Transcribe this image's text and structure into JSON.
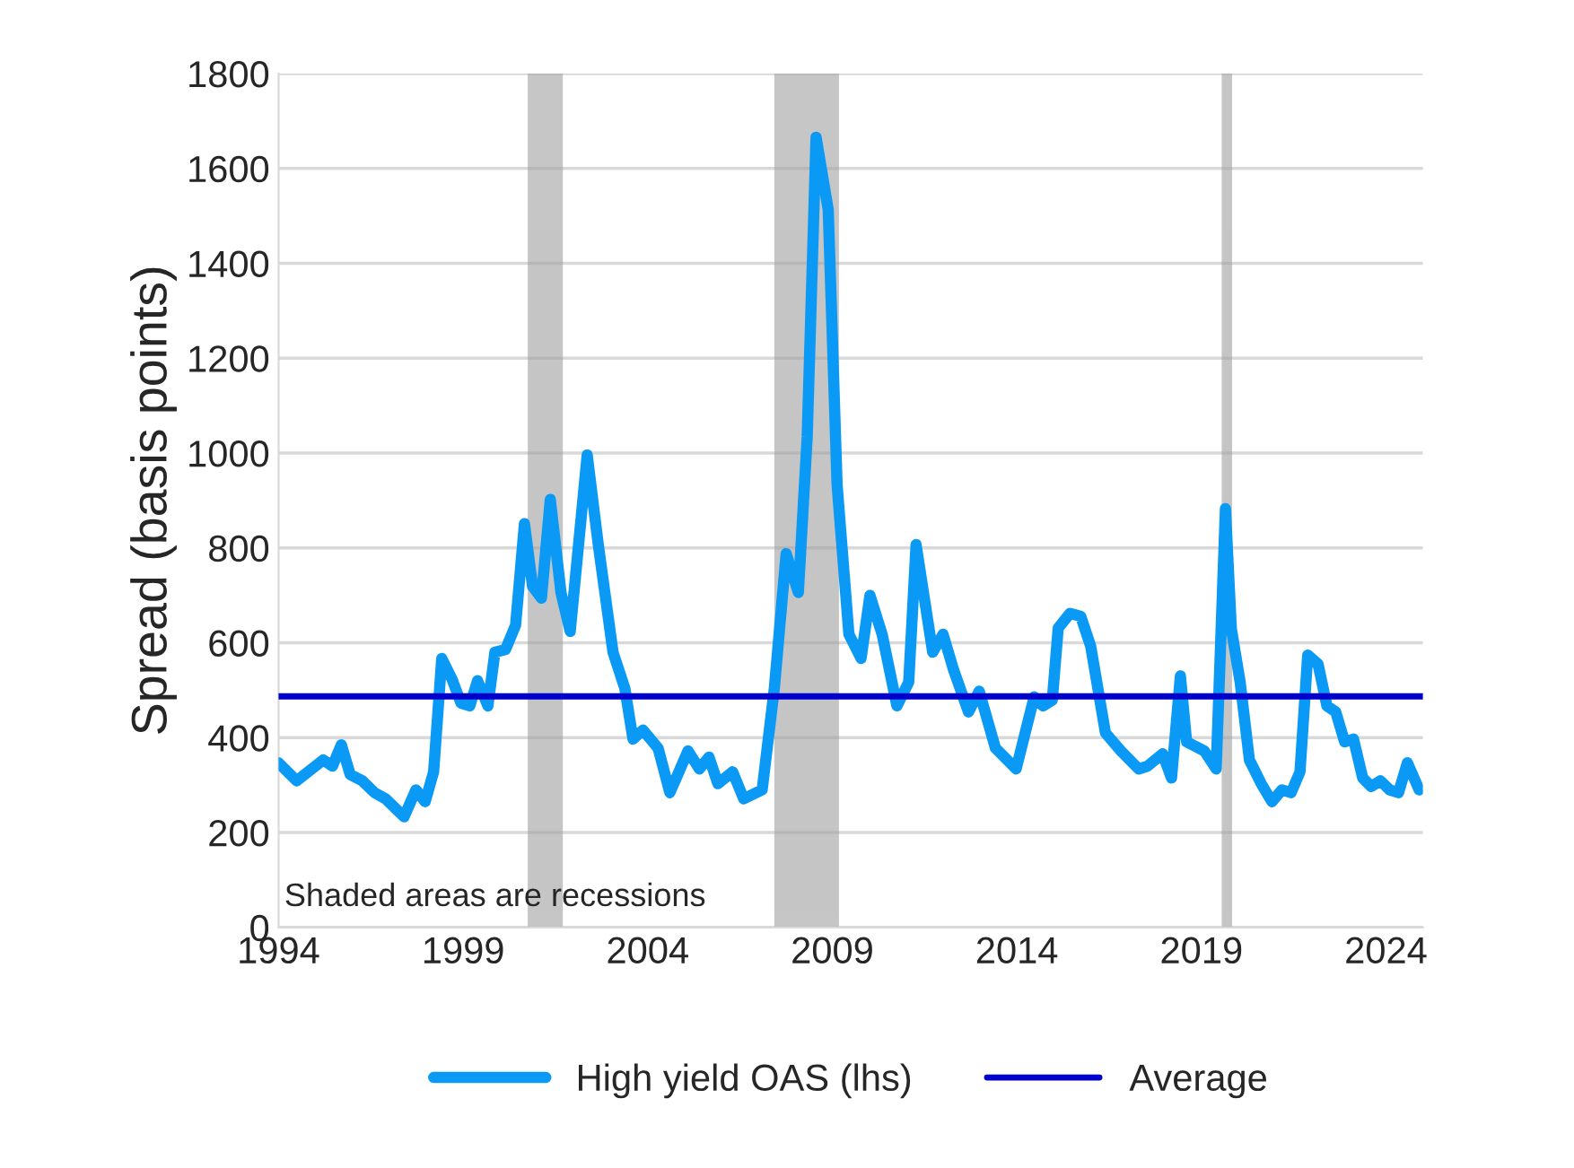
{
  "chart_data": {
    "type": "line",
    "ylabel": "Spread (basis points)",
    "xlim": [
      1994,
      2025
    ],
    "xticks": [
      1994,
      1999,
      2004,
      2009,
      2014,
      2019,
      2024
    ],
    "ylim": [
      0,
      1800
    ],
    "yticks": [
      0,
      200,
      400,
      600,
      800,
      1000,
      1200,
      1400,
      1600,
      1800
    ],
    "grid": "y",
    "legend": "bottom",
    "series": [
      {
        "name": "High yield OAS (lhs)",
        "color": "#0a9af5",
        "x": [
          1994.0,
          1994.49,
          1995.21,
          1995.46,
          1995.7,
          1995.94,
          1996.27,
          1996.6,
          1996.9,
          1997.4,
          1997.72,
          1997.97,
          1998.2,
          1998.42,
          1998.7,
          1998.94,
          1999.18,
          1999.39,
          1999.67,
          1999.86,
          2000.15,
          2000.42,
          2000.66,
          2000.88,
          2001.12,
          2001.36,
          2001.65,
          2001.9,
          2002.36,
          2002.66,
          2003.06,
          2003.38,
          2003.6,
          2003.87,
          2004.28,
          2004.6,
          2005.09,
          2005.4,
          2005.66,
          2005.9,
          2006.3,
          2006.6,
          2007.1,
          2007.43,
          2007.75,
          2008.08,
          2008.32,
          2008.56,
          2008.89,
          2009.13,
          2009.45,
          2009.78,
          2010.02,
          2010.35,
          2010.75,
          2011.07,
          2011.27,
          2011.72,
          2012.0,
          2012.29,
          2012.69,
          2012.98,
          2013.42,
          2013.98,
          2014.47,
          2014.71,
          2014.96,
          2015.12,
          2015.44,
          2015.73,
          2016.0,
          2016.4,
          2016.82,
          2017.3,
          2017.54,
          2017.95,
          2018.19,
          2018.43,
          2018.6,
          2019.08,
          2019.4,
          2019.65,
          2019.81,
          2020.05,
          2020.3,
          2020.62,
          2020.91,
          2021.18,
          2021.43,
          2021.67,
          2021.88,
          2022.16,
          2022.4,
          2022.64,
          2022.88,
          2023.12,
          2023.37,
          2023.6,
          2023.85,
          2024.1,
          2024.34,
          2024.58,
          2024.9
        ],
        "values": [
          347,
          309,
          353,
          340,
          385,
          322,
          309,
          284,
          271,
          233,
          290,
          265,
          328,
          567,
          523,
          473,
          467,
          520,
          467,
          580,
          586,
          637,
          851,
          719,
          694,
          902,
          706,
          624,
          996,
          807,
          580,
          504,
          397,
          416,
          378,
          284,
          372,
          334,
          359,
          303,
          328,
          271,
          290,
          504,
          788,
          706,
          1034,
          1666,
          1513,
          933,
          618,
          567,
          700,
          618,
          467,
          517,
          807,
          580,
          618,
          542,
          454,
          498,
          378,
          334,
          486,
          467,
          479,
          631,
          662,
          656,
          593,
          410,
          372,
          334,
          340,
          366,
          315,
          530,
          391,
          372,
          334,
          883,
          630,
          517,
          353,
          303,
          265,
          290,
          284,
          328,
          574,
          555,
          467,
          454,
          391,
          397,
          315,
          297,
          309,
          290,
          284,
          347,
          290
        ]
      }
    ],
    "ref_lines": [
      {
        "axis": "y",
        "value": 487,
        "label": "Average",
        "color": "#0000cc"
      }
    ],
    "bands": [
      {
        "axis": "x",
        "from": 2000.8,
        "to": 2001.65,
        "color": "#a0a0a0"
      },
      {
        "axis": "x",
        "from": 2007.48,
        "to": 2009.13,
        "color": "#a0a0a0"
      },
      {
        "axis": "x",
        "from": 2019.6,
        "to": 2019.78,
        "color": "#a0a0a0"
      }
    ],
    "annotations": [
      "Shaded areas are recessions"
    ]
  }
}
